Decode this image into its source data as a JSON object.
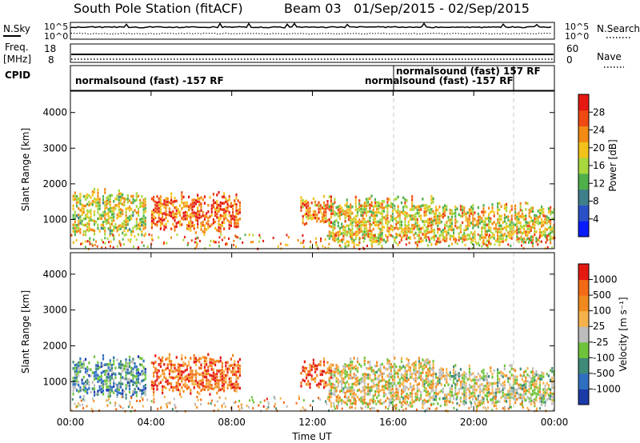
{
  "header": {
    "station": "South Pole Station (fitACF)",
    "beam": "Beam 03",
    "date_range": "01/Sep/2015 - 02/Sep/2015"
  },
  "status_panels": {
    "nsky_label": "N.Sky",
    "nsky_ticks": [
      "10^5",
      "10^0"
    ],
    "nsearch_label": "N.Search",
    "nsearch_ticks": [
      "10^5",
      "10^0"
    ],
    "freq_label": "Freq.",
    "freq_unit": "[MHz]",
    "freq_ticks": [
      "18",
      "8"
    ],
    "nave_label": "Nave",
    "nave_ticks": [
      "60",
      "0"
    ],
    "cpid_label": "CPID",
    "cpid_entries": [
      {
        "text": "normalsound (fast) -157 RF"
      },
      {
        "text": "normalsound (fast) 157 RF"
      },
      {
        "text": "normalsound (fast) -157 RF"
      }
    ]
  },
  "chart_data": [
    {
      "type": "heatmap",
      "name": "power",
      "ylabel": "Slant Range [km]",
      "y_ticks": [
        "1000",
        "2000",
        "3000",
        "4000"
      ],
      "ylim": [
        180,
        4600
      ],
      "colorbar_label": "Power [dB]",
      "colorbar_ticks": [
        "4",
        "8",
        "12",
        "16",
        "20",
        "24",
        "28"
      ],
      "colorbar_range": [
        0,
        32
      ],
      "colors": [
        "#0a1cff",
        "#2a50c8",
        "#3f7f8c",
        "#4fb04a",
        "#a8d83c",
        "#f3c21a",
        "#f28a14",
        "#ee4a12",
        "#e41a12"
      ],
      "x_ticks": [
        "00:00",
        "04:00",
        "08:00",
        "12:00",
        "16:00",
        "20:00",
        "00:00"
      ],
      "regions": [
        {
          "t0": 0.1,
          "t1": 3.7,
          "r0": 550,
          "r1": 1900,
          "level": 0.55
        },
        {
          "t0": 4.0,
          "t1": 8.4,
          "r0": 650,
          "r1": 1800,
          "level": 0.8
        },
        {
          "t0": 11.4,
          "t1": 12.9,
          "r0": 800,
          "r1": 1700,
          "level": 0.75
        },
        {
          "t0": 12.8,
          "t1": 18.0,
          "r0": 250,
          "r1": 1700,
          "level": 0.6
        },
        {
          "t0": 18.0,
          "t1": 24.0,
          "r0": 300,
          "r1": 1500,
          "level": 0.6
        }
      ]
    },
    {
      "type": "heatmap",
      "name": "velocity",
      "ylabel": "Slant Range [km]",
      "y_ticks": [
        "1000",
        "2000",
        "3000",
        "4000"
      ],
      "ylim": [
        180,
        4600
      ],
      "colorbar_label": "Velocity [m s⁻¹]",
      "colorbar_ticks": [
        "1000",
        "500",
        "100",
        "25",
        "-25",
        "-100",
        "-500",
        "-1000"
      ],
      "colors": [
        "#1c3aa8",
        "#2f6fc0",
        "#3f8a78",
        "#6fc33a",
        "#bdbdbd",
        "#f6b24a",
        "#f08a1e",
        "#f26a16",
        "#e41a12"
      ],
      "x_ticks": [
        "00:00",
        "04:00",
        "08:00",
        "12:00",
        "16:00",
        "20:00",
        "00:00"
      ],
      "xlabel": "Time UT",
      "regions": [
        {
          "t0": 0.1,
          "t1": 3.7,
          "r0": 550,
          "r1": 1800,
          "level": 0.3
        },
        {
          "t0": 4.0,
          "t1": 8.4,
          "r0": 650,
          "r1": 1800,
          "level": 0.8
        },
        {
          "t0": 11.4,
          "t1": 12.9,
          "r0": 800,
          "r1": 1700,
          "level": 0.8
        },
        {
          "t0": 12.8,
          "t1": 18.0,
          "r0": 250,
          "r1": 1700,
          "level": 0.55
        },
        {
          "t0": 18.0,
          "t1": 24.0,
          "r0": 300,
          "r1": 1500,
          "level": 0.5
        }
      ]
    }
  ]
}
